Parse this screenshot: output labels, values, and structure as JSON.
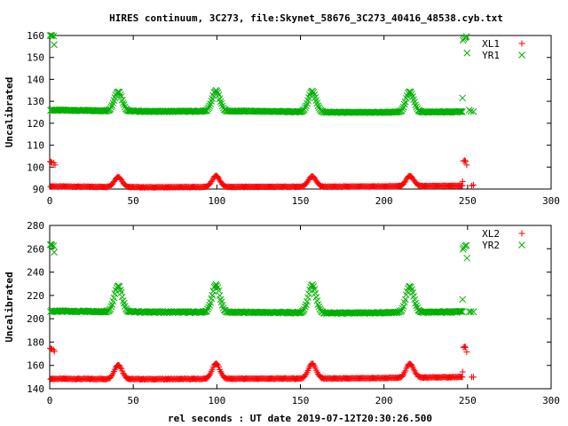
{
  "title": "HIRES continuum, 3C273, file:Skynet_58676_3C273_40416_48538.cyb.txt",
  "xlabel": "rel seconds : UT date 2019-07-12T20:30:26.500",
  "colors": {
    "red": "#ff0000",
    "green": "#00b000",
    "frame": "#000000"
  },
  "chart_data": [
    {
      "type": "scatter",
      "ylabel": "Uncalibrated",
      "xlim": [
        0,
        300
      ],
      "ylim": [
        90,
        160
      ],
      "xticks": [
        0,
        50,
        100,
        150,
        200,
        250,
        300
      ],
      "yticks": [
        90,
        100,
        110,
        120,
        130,
        140,
        150,
        160
      ],
      "legend_position": "top-right",
      "series": [
        {
          "name": "XL1",
          "marker": "plus",
          "color": "#ff0000",
          "baseline": [
            [
              0.5,
              91.2
            ],
            [
              60,
              90.8
            ],
            [
              120,
              91.0
            ],
            [
              180,
              91.1
            ],
            [
              247,
              91.5
            ]
          ],
          "peaks": [
            [
              41,
              95.5
            ],
            [
              99.5,
              96.0
            ],
            [
              157,
              95.8
            ],
            [
              215.5,
              96.0
            ]
          ],
          "points": [
            [
              0.3,
              102.5
            ],
            [
              0.8,
              102.3
            ],
            [
              1.3,
              102.0
            ],
            [
              2.5,
              102.0
            ],
            [
              3.2,
              101.0
            ],
            [
              247,
              93.5
            ],
            [
              247.5,
              102.8
            ],
            [
              248.2,
              103.0
            ],
            [
              248.8,
              102.7
            ],
            [
              249.5,
              101.0
            ],
            [
              252.5,
              91.5
            ],
            [
              253.5,
              91.8
            ]
          ]
        },
        {
          "name": "YR1",
          "marker": "x",
          "color": "#00b000",
          "baseline": [
            [
              0.5,
              126.0
            ],
            [
              60,
              125.4
            ],
            [
              120,
              125.5
            ],
            [
              180,
              124.9
            ],
            [
              247,
              125.2
            ]
          ],
          "peaks": [
            [
              41,
              134.5
            ],
            [
              99.5,
              134.8
            ],
            [
              157,
              134.6
            ],
            [
              215.5,
              134.5
            ]
          ],
          "points": [
            [
              0.3,
              160.0
            ],
            [
              0.8,
              160.0
            ],
            [
              1.3,
              160.0
            ],
            [
              2.3,
              159.8
            ],
            [
              2.7,
              155.8
            ],
            [
              247,
              131.5
            ],
            [
              247.3,
              157.8
            ],
            [
              247.8,
              158.5
            ],
            [
              248.5,
              159.0
            ],
            [
              249.3,
              159.5
            ],
            [
              249.7,
              152.0
            ],
            [
              251,
              126.0
            ],
            [
              252,
              125.5
            ],
            [
              253.5,
              125.3
            ]
          ]
        }
      ]
    },
    {
      "type": "scatter",
      "ylabel": "Uncalibrated",
      "xlim": [
        0,
        300
      ],
      "ylim": [
        140,
        280
      ],
      "xticks": [
        0,
        50,
        100,
        150,
        200,
        250,
        300
      ],
      "yticks": [
        140,
        160,
        180,
        200,
        220,
        240,
        260,
        280
      ],
      "legend_position": "top-right",
      "series": [
        {
          "name": "XL2",
          "marker": "plus",
          "color": "#ff0000",
          "baseline": [
            [
              0.5,
              148.5
            ],
            [
              60,
              148.2
            ],
            [
              120,
              148.6
            ],
            [
              180,
              148.8
            ],
            [
              247,
              150.0
            ]
          ],
          "peaks": [
            [
              41,
              160.5
            ],
            [
              99.5,
              161.5
            ],
            [
              157,
              161.5
            ],
            [
              215.5,
              161.5
            ]
          ],
          "points": [
            [
              0.3,
              174.5
            ],
            [
              0.8,
              174.3
            ],
            [
              1.3,
              174.0
            ],
            [
              2.3,
              173.5
            ],
            [
              2.8,
              172.0
            ],
            [
              247,
              154.5
            ],
            [
              247.5,
              175.5
            ],
            [
              248.2,
              176.0
            ],
            [
              248.8,
              175.5
            ],
            [
              249.5,
              171.5
            ],
            [
              252.5,
              150.0
            ],
            [
              253.5,
              150.0
            ]
          ]
        },
        {
          "name": "YR2",
          "marker": "x",
          "color": "#00b000",
          "baseline": [
            [
              0.5,
              206.5
            ],
            [
              60,
              205.8
            ],
            [
              120,
              205.5
            ],
            [
              180,
              204.8
            ],
            [
              247,
              206.0
            ]
          ],
          "peaks": [
            [
              41,
              228.5
            ],
            [
              99.5,
              229.0
            ],
            [
              157,
              229.0
            ],
            [
              215.5,
              228.0
            ]
          ],
          "points": [
            [
              0.3,
              263.5
            ],
            [
              0.8,
              263.5
            ],
            [
              1.3,
              263.0
            ],
            [
              2.3,
              262.5
            ],
            [
              2.7,
              257.0
            ],
            [
              247,
              216.5
            ],
            [
              247.3,
              259.5
            ],
            [
              247.8,
              261.0
            ],
            [
              248.5,
              262.5
            ],
            [
              249.3,
              263.0
            ],
            [
              249.7,
              252.0
            ],
            [
              251,
              206.0
            ],
            [
              252,
              206.0
            ],
            [
              253.5,
              206.0
            ]
          ]
        }
      ]
    }
  ]
}
